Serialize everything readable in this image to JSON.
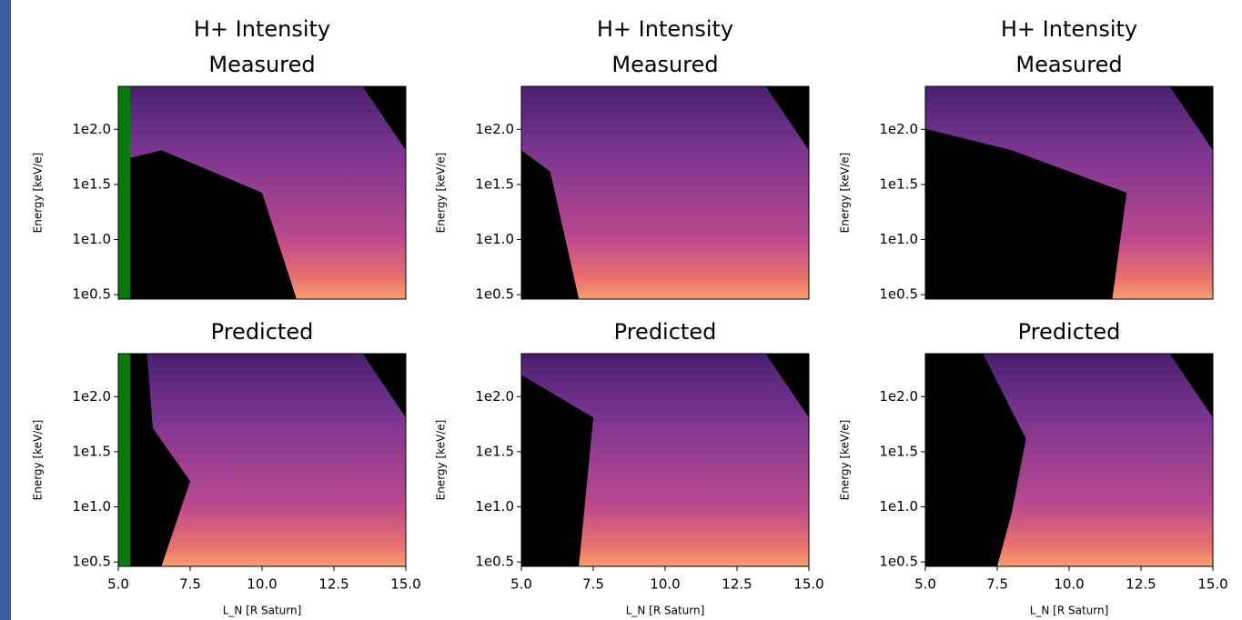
{
  "chart_data": [
    {
      "type": "heatmap",
      "title": "H+ Intensity",
      "subtitle": "Measured",
      "ylabel": "Energy [keV/e]",
      "xlim": [
        5,
        15
      ],
      "ylim": [
        0.46,
        2.39
      ],
      "yticks": [
        {
          "value": 0.5,
          "label": "1e0.5"
        },
        {
          "value": 1.0,
          "label": "1e1.0"
        },
        {
          "value": 1.5,
          "label": "1e1.5"
        },
        {
          "value": 2.0,
          "label": "1e2.0"
        }
      ]
    },
    {
      "type": "heatmap",
      "title": "H+ Intensity",
      "subtitle": "Measured",
      "ylabel": "Energy [keV/e]",
      "xlim": [
        5,
        15
      ],
      "ylim": [
        0.46,
        2.39
      ],
      "yticks": [
        {
          "value": 0.5,
          "label": "1e0.5"
        },
        {
          "value": 1.0,
          "label": "1e1.0"
        },
        {
          "value": 1.5,
          "label": "1e1.5"
        },
        {
          "value": 2.0,
          "label": "1e2.0"
        }
      ]
    },
    {
      "type": "heatmap",
      "title": "H+ Intensity",
      "subtitle": "Measured",
      "ylabel": "Energy [keV/e]",
      "xlim": [
        5,
        15
      ],
      "ylim": [
        0.46,
        2.39
      ],
      "yticks": [
        {
          "value": 0.5,
          "label": "1e0.5"
        },
        {
          "value": 1.0,
          "label": "1e1.0"
        },
        {
          "value": 1.5,
          "label": "1e1.5"
        },
        {
          "value": 2.0,
          "label": "1e2.0"
        }
      ]
    },
    {
      "type": "heatmap",
      "title": "Predicted",
      "ylabel": "Energy [keV/e]",
      "xlabel": "L_N [R Saturn]",
      "xlim": [
        5,
        15
      ],
      "ylim": [
        0.46,
        2.39
      ],
      "xticks": [
        {
          "value": 5,
          "label": "5.0"
        },
        7.5,
        {
          "value": 10,
          "label": "10.0"
        },
        12.5,
        {
          "value": 15,
          "label": "15.0"
        }
      ],
      "yticks": [
        {
          "value": 0.5,
          "label": "1e0.5"
        },
        {
          "value": 1.0,
          "label": "1e1.0"
        },
        {
          "value": 1.5,
          "label": "1e1.5"
        },
        {
          "value": 2.0,
          "label": "1e2.0"
        }
      ]
    },
    {
      "type": "heatmap",
      "title": "Predicted",
      "ylabel": "Energy [keV/e]",
      "xlabel": "L_N [R Saturn]",
      "xlim": [
        5,
        15
      ],
      "ylim": [
        0.46,
        2.39
      ],
      "xticks": [
        {
          "value": 5,
          "label": "5.0"
        },
        7.5,
        {
          "value": 10,
          "label": "10.0"
        },
        12.5,
        {
          "value": 15,
          "label": "15.0"
        }
      ],
      "yticks": [
        {
          "value": 0.5,
          "label": "1e0.5"
        },
        {
          "value": 1.0,
          "label": "1e1.0"
        },
        {
          "value": 1.5,
          "label": "1e1.5"
        },
        {
          "value": 2.0,
          "label": "1e2.0"
        }
      ]
    },
    {
      "type": "heatmap",
      "title": "Predicted",
      "ylabel": "Energy [keV/e]",
      "xlabel": "L_N [R Saturn]",
      "xlim": [
        5,
        15
      ],
      "ylim": [
        0.46,
        2.39
      ],
      "xticks": [
        {
          "value": 5,
          "label": "5.0"
        },
        7.5,
        {
          "value": 10,
          "label": "10.0"
        },
        12.5,
        {
          "value": 15,
          "label": "15.0"
        }
      ],
      "yticks": [
        {
          "value": 0.5,
          "label": "1e0.5"
        },
        {
          "value": 1.0,
          "label": "1e1.0"
        },
        {
          "value": 1.5,
          "label": "1e1.5"
        },
        {
          "value": 2.0,
          "label": "1e2.0"
        }
      ]
    }
  ]
}
